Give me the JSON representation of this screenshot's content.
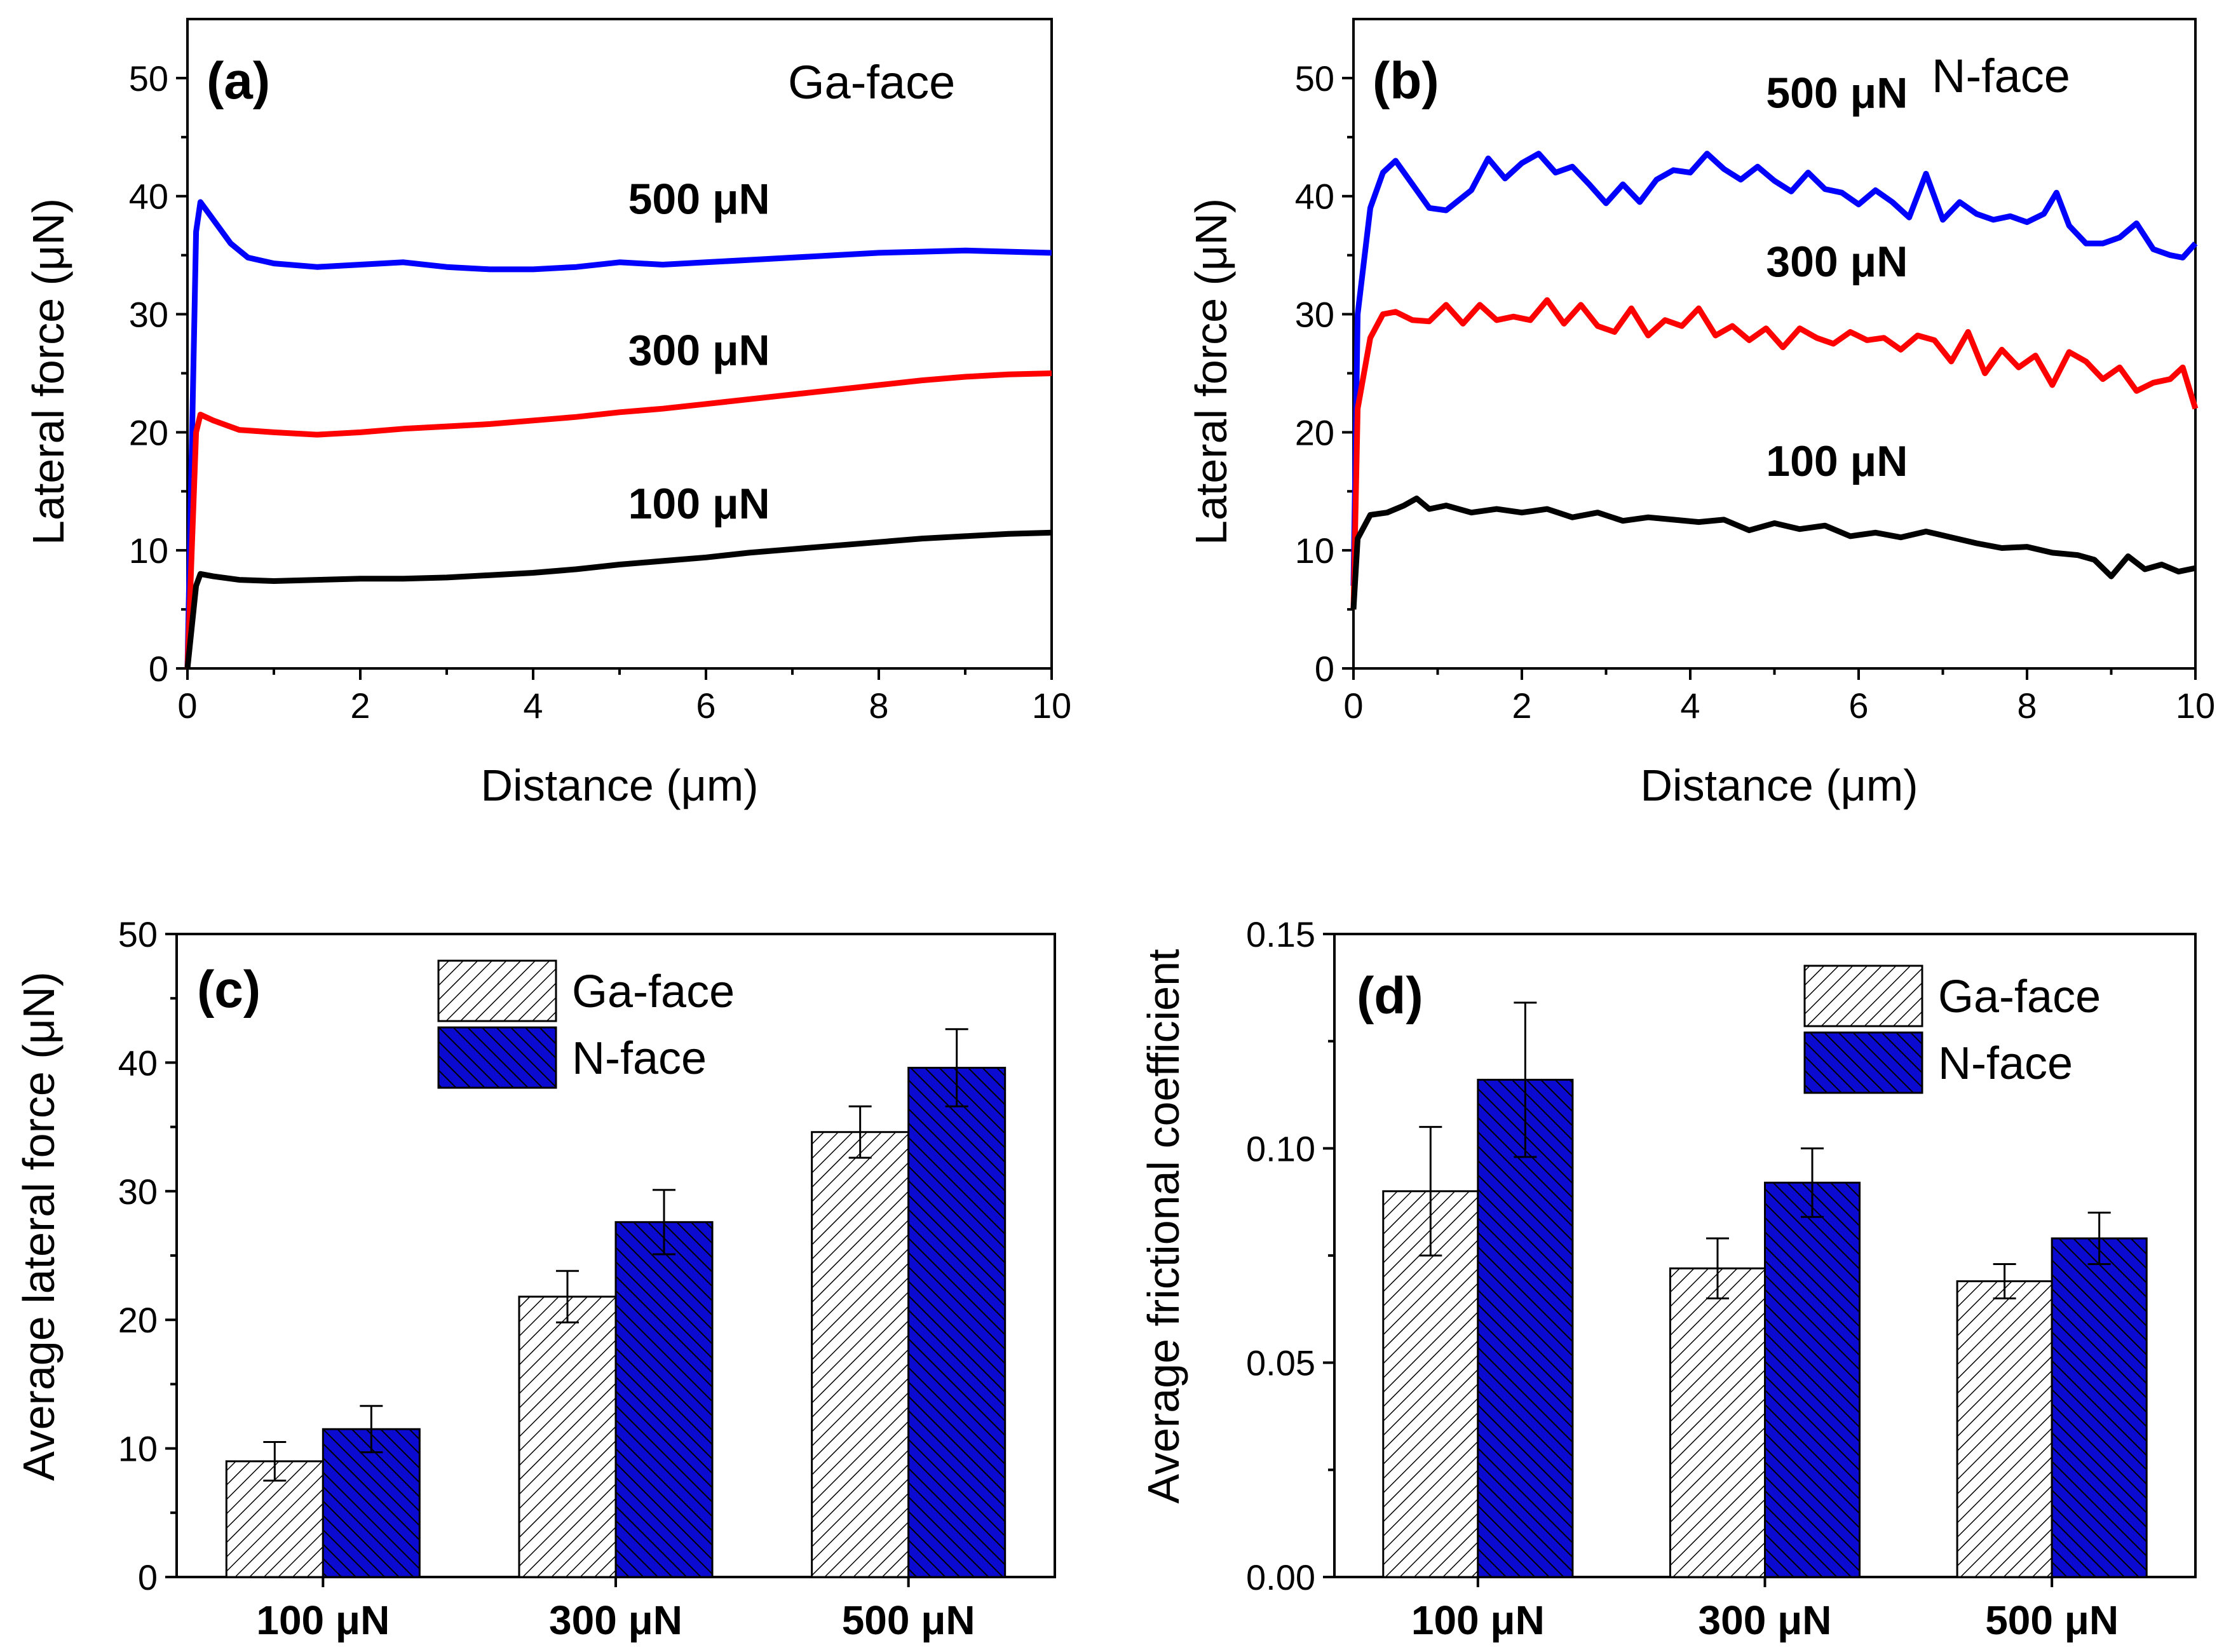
{
  "chart_data": [
    {
      "id": "a",
      "type": "line",
      "panel_label": "(a)",
      "corner_label": "Ga-face",
      "xlabel": "Distance (μm)",
      "ylabel": "Lateral force (μN)",
      "xlim": [
        0,
        10
      ],
      "ylim": [
        0,
        55
      ],
      "xticks": [
        "0",
        "2",
        "4",
        "6",
        "8",
        "10"
      ],
      "yticks": [
        "0",
        "10",
        "20",
        "30",
        "40",
        "50"
      ],
      "series": [
        {
          "name": "500 μN",
          "color": "#0000ff",
          "x": [
            0,
            0.1,
            0.15,
            0.3,
            0.5,
            0.7,
            1,
            1.5,
            2,
            2.5,
            3,
            3.5,
            4,
            4.5,
            5,
            5.5,
            6,
            6.5,
            7,
            7.5,
            8,
            8.5,
            9,
            9.5,
            10
          ],
          "y": [
            0,
            37,
            39.5,
            38,
            36,
            34.8,
            34.3,
            34,
            34.2,
            34.4,
            34,
            33.8,
            33.8,
            34,
            34.4,
            34.2,
            34.4,
            34.6,
            34.8,
            35,
            35.2,
            35.3,
            35.4,
            35.3,
            35.2
          ]
        },
        {
          "name": "300 μN",
          "color": "#ff0000",
          "x": [
            0,
            0.1,
            0.15,
            0.3,
            0.6,
            1,
            1.5,
            2,
            2.5,
            3,
            3.5,
            4,
            4.5,
            5,
            5.5,
            6,
            6.5,
            7,
            7.5,
            8,
            8.5,
            9,
            9.5,
            10
          ],
          "y": [
            0,
            20,
            21.5,
            21,
            20.2,
            20,
            19.8,
            20,
            20.3,
            20.5,
            20.7,
            21,
            21.3,
            21.7,
            22,
            22.4,
            22.8,
            23.2,
            23.6,
            24,
            24.4,
            24.7,
            24.9,
            25
          ]
        },
        {
          "name": "100 μN",
          "color": "#000000",
          "x": [
            0,
            0.1,
            0.15,
            0.3,
            0.6,
            1,
            1.5,
            2,
            2.5,
            3,
            3.5,
            4,
            4.5,
            5,
            5.5,
            6,
            6.5,
            7,
            7.5,
            8,
            8.5,
            9,
            9.5,
            10
          ],
          "y": [
            0,
            7,
            8,
            7.8,
            7.5,
            7.4,
            7.5,
            7.6,
            7.6,
            7.7,
            7.9,
            8.1,
            8.4,
            8.8,
            9.1,
            9.4,
            9.8,
            10.1,
            10.4,
            10.7,
            11,
            11.2,
            11.4,
            11.5
          ]
        }
      ],
      "annotations": [
        {
          "text": "500 μN",
          "color": "#0000ff",
          "x": 5.1,
          "y": 38.5
        },
        {
          "text": "300 μN",
          "color": "#ff0000",
          "x": 5.1,
          "y": 25.7
        },
        {
          "text": "100 μN",
          "color": "#000000",
          "x": 5.1,
          "y": 12.7
        }
      ]
    },
    {
      "id": "b",
      "type": "line",
      "panel_label": "(b)",
      "corner_label": "N-face",
      "xlabel": "Distance (μm)",
      "ylabel": "Lateral force (μN)",
      "xlim": [
        0,
        10
      ],
      "ylim": [
        0,
        55
      ],
      "xticks": [
        "0",
        "2",
        "4",
        "6",
        "8",
        "10"
      ],
      "yticks": [
        "0",
        "10",
        "20",
        "30",
        "40",
        "50"
      ],
      "series": [
        {
          "name": "500 μN",
          "color": "#0000ff",
          "x": [
            0,
            0.05,
            0.2,
            0.35,
            0.5,
            0.7,
            0.9,
            1.1,
            1.4,
            1.6,
            1.8,
            2.0,
            2.2,
            2.4,
            2.6,
            2.8,
            3.0,
            3.2,
            3.4,
            3.6,
            3.8,
            4.0,
            4.2,
            4.4,
            4.6,
            4.8,
            5.0,
            5.2,
            5.4,
            5.6,
            5.8,
            6.0,
            6.2,
            6.4,
            6.6,
            6.8,
            7.0,
            7.2,
            7.4,
            7.6,
            7.8,
            8.0,
            8.2,
            8.35,
            8.5,
            8.7,
            8.9,
            9.1,
            9.3,
            9.5,
            9.7,
            9.85,
            10
          ],
          "y": [
            7,
            30,
            39,
            42,
            43,
            41,
            39,
            38.8,
            40.5,
            43.2,
            41.5,
            42.8,
            43.6,
            42,
            42.5,
            41,
            39.4,
            41,
            39.5,
            41.4,
            42.2,
            42,
            43.6,
            42.3,
            41.4,
            42.5,
            41.3,
            40.4,
            42,
            40.6,
            40.3,
            39.3,
            40.5,
            39.5,
            38.2,
            41.9,
            38,
            39.5,
            38.5,
            38,
            38.3,
            37.8,
            38.5,
            40.3,
            37.5,
            36,
            36,
            36.5,
            37.7,
            35.5,
            35,
            34.8,
            36
          ]
        },
        {
          "name": "300 μN",
          "color": "#ff0000",
          "x": [
            0,
            0.05,
            0.2,
            0.35,
            0.5,
            0.7,
            0.9,
            1.1,
            1.3,
            1.5,
            1.7,
            1.9,
            2.1,
            2.3,
            2.5,
            2.7,
            2.9,
            3.1,
            3.3,
            3.5,
            3.7,
            3.9,
            4.1,
            4.3,
            4.5,
            4.7,
            4.9,
            5.1,
            5.3,
            5.5,
            5.7,
            5.9,
            6.1,
            6.3,
            6.5,
            6.7,
            6.9,
            7.1,
            7.3,
            7.5,
            7.7,
            7.9,
            8.1,
            8.3,
            8.5,
            8.7,
            8.9,
            9.1,
            9.3,
            9.5,
            9.7,
            9.85,
            10
          ],
          "y": [
            5,
            22,
            28,
            30,
            30.2,
            29.5,
            29.4,
            30.8,
            29.2,
            30.8,
            29.5,
            29.8,
            29.5,
            31.2,
            29.2,
            30.8,
            29,
            28.5,
            30.5,
            28.2,
            29.5,
            29,
            30.5,
            28.2,
            29,
            27.8,
            28.8,
            27.2,
            28.8,
            28,
            27.5,
            28.5,
            27.8,
            28,
            27,
            28.2,
            27.8,
            26,
            28.5,
            25,
            27,
            25.5,
            26.5,
            24,
            26.8,
            26,
            24.5,
            25.5,
            23.5,
            24.2,
            24.5,
            25.5,
            22
          ]
        },
        {
          "name": "100 μN",
          "color": "#000000",
          "x": [
            0,
            0.05,
            0.2,
            0.4,
            0.6,
            0.75,
            0.9,
            1.1,
            1.4,
            1.7,
            2.0,
            2.3,
            2.6,
            2.9,
            3.2,
            3.5,
            3.8,
            4.1,
            4.4,
            4.7,
            5.0,
            5.3,
            5.6,
            5.9,
            6.2,
            6.5,
            6.8,
            7.1,
            7.4,
            7.7,
            8.0,
            8.3,
            8.6,
            8.8,
            9.0,
            9.2,
            9.4,
            9.6,
            9.8,
            10
          ],
          "y": [
            5,
            11,
            13,
            13.2,
            13.8,
            14.4,
            13.5,
            13.8,
            13.2,
            13.5,
            13.2,
            13.5,
            12.8,
            13.2,
            12.5,
            12.8,
            12.6,
            12.4,
            12.6,
            11.7,
            12.3,
            11.8,
            12.1,
            11.2,
            11.5,
            11.1,
            11.6,
            11.1,
            10.6,
            10.2,
            10.3,
            9.8,
            9.6,
            9.2,
            7.8,
            9.5,
            8.4,
            8.8,
            8.2,
            8.5
          ]
        }
      ],
      "annotations": [
        {
          "text": "500 μN",
          "color": "#0000ff",
          "x": 4.9,
          "y": 47.5
        },
        {
          "text": "300 μN",
          "color": "#ff0000",
          "x": 4.9,
          "y": 33.2
        },
        {
          "text": "100 μN",
          "color": "#000000",
          "x": 4.9,
          "y": 16.3
        }
      ]
    },
    {
      "id": "c",
      "type": "bar",
      "panel_label": "(c)",
      "ylabel": "Average lateral force (μN)",
      "ylim": [
        0,
        50
      ],
      "yticks": [
        "0",
        "10",
        "20",
        "30",
        "40",
        "50"
      ],
      "categories": [
        "100 μN",
        "300 μN",
        "500 μN"
      ],
      "category_colors": [
        "#000000",
        "#ff0000",
        "#0000ff"
      ],
      "legend": [
        "Ga-face",
        "N-face"
      ],
      "series": [
        {
          "name": "Ga-face",
          "values": [
            9.0,
            21.8,
            34.6
          ],
          "errors": [
            1.5,
            2.0,
            2.0
          ]
        },
        {
          "name": "N-face",
          "values": [
            11.5,
            27.6,
            39.6
          ],
          "errors": [
            1.8,
            2.5,
            3.0
          ]
        }
      ]
    },
    {
      "id": "d",
      "type": "bar",
      "panel_label": "(d)",
      "ylabel": "Average frictional coefficient",
      "ylim": [
        0,
        0.15
      ],
      "yticks": [
        "0.00",
        "0.05",
        "0.10",
        "0.15"
      ],
      "categories": [
        "100 μN",
        "300 μN",
        "500 μN"
      ],
      "category_colors": [
        "#000000",
        "#ff0000",
        "#0000ff"
      ],
      "legend": [
        "Ga-face",
        "N-face"
      ],
      "series": [
        {
          "name": "Ga-face",
          "values": [
            0.09,
            0.072,
            0.069
          ],
          "errors": [
            0.015,
            0.007,
            0.004
          ]
        },
        {
          "name": "N-face",
          "values": [
            0.116,
            0.092,
            0.079
          ],
          "errors": [
            0.018,
            0.008,
            0.006
          ]
        }
      ]
    }
  ],
  "colors": {
    "ga_fill_hatch": "#000000",
    "ga_fill_bg": "#ffffff",
    "n_fill": "#0a0ad0",
    "n_hatch": "#000000"
  }
}
